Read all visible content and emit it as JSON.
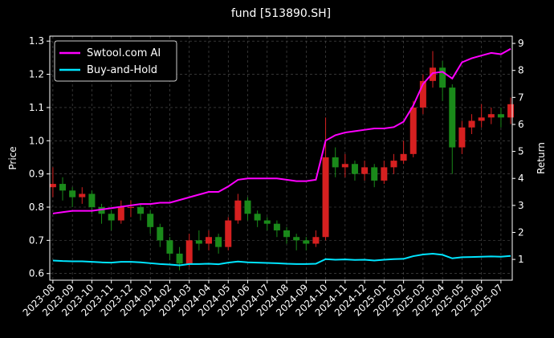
{
  "chart_data": {
    "type": "candlestick",
    "title": "fund [513890.SH]",
    "ylabel": "Price",
    "y2label": "Return",
    "x": [
      0,
      0.5,
      1,
      1.5,
      2,
      2.5,
      3,
      3.5,
      4,
      4.5,
      5,
      5.5,
      6,
      6.5,
      7,
      7.5,
      8,
      8.5,
      9,
      9.5,
      10,
      10.5,
      11,
      11.5,
      12,
      12.5,
      13,
      13.5,
      14,
      14.5,
      15,
      15.5,
      16,
      16.5,
      17,
      17.5,
      18,
      18.5,
      19,
      19.5,
      20,
      20.5,
      21,
      21.5,
      22,
      22.5,
      23,
      23.5
    ],
    "open": [
      0.86,
      0.87,
      0.85,
      0.83,
      0.84,
      0.8,
      0.78,
      0.76,
      0.8,
      0.8,
      0.78,
      0.74,
      0.7,
      0.66,
      0.63,
      0.7,
      0.69,
      0.71,
      0.68,
      0.76,
      0.82,
      0.78,
      0.76,
      0.75,
      0.73,
      0.71,
      0.7,
      0.69,
      0.71,
      0.95,
      0.92,
      0.93,
      0.9,
      0.92,
      0.88,
      0.92,
      0.94,
      0.96,
      1.1,
      1.18,
      1.22,
      1.16,
      0.98,
      1.04,
      1.06,
      1.07,
      1.08,
      1.07
    ],
    "high": [
      0.92,
      0.89,
      0.86,
      0.86,
      0.85,
      0.81,
      0.79,
      0.82,
      0.82,
      0.81,
      0.79,
      0.75,
      0.71,
      0.68,
      0.72,
      0.73,
      0.73,
      0.72,
      0.77,
      0.84,
      0.83,
      0.79,
      0.77,
      0.76,
      0.74,
      0.72,
      0.71,
      0.73,
      1.07,
      0.98,
      0.96,
      0.94,
      0.94,
      0.93,
      0.94,
      0.96,
      1.0,
      1.12,
      1.2,
      1.27,
      1.24,
      1.17,
      1.06,
      1.08,
      1.11,
      1.1,
      1.1,
      1.13
    ],
    "low": [
      0.83,
      0.82,
      0.8,
      0.81,
      0.78,
      0.75,
      0.73,
      0.75,
      0.77,
      0.76,
      0.72,
      0.68,
      0.64,
      0.61,
      0.62,
      0.67,
      0.67,
      0.66,
      0.67,
      0.75,
      0.76,
      0.74,
      0.73,
      0.71,
      0.69,
      0.67,
      0.67,
      0.68,
      0.7,
      0.89,
      0.89,
      0.88,
      0.88,
      0.86,
      0.87,
      0.9,
      0.93,
      0.95,
      1.08,
      1.16,
      1.12,
      0.9,
      0.96,
      1.02,
      1.04,
      1.05,
      1.04,
      1.05
    ],
    "close": [
      0.87,
      0.85,
      0.83,
      0.84,
      0.8,
      0.78,
      0.76,
      0.8,
      0.8,
      0.78,
      0.74,
      0.7,
      0.66,
      0.63,
      0.7,
      0.69,
      0.71,
      0.68,
      0.76,
      0.82,
      0.78,
      0.76,
      0.75,
      0.73,
      0.71,
      0.7,
      0.69,
      0.71,
      0.95,
      0.92,
      0.93,
      0.9,
      0.92,
      0.88,
      0.92,
      0.94,
      0.96,
      1.1,
      1.18,
      1.22,
      1.16,
      0.98,
      1.04,
      1.06,
      1.07,
      1.08,
      1.07,
      1.11
    ],
    "up_color": "#d62020",
    "down_color": "#1a8a1a",
    "series": [
      {
        "name": "Swtool.com AI",
        "color": "#ff00ff",
        "axis": "y2",
        "values": [
          2.7,
          2.75,
          2.8,
          2.8,
          2.8,
          2.85,
          2.9,
          2.95,
          3.0,
          3.05,
          3.05,
          3.1,
          3.1,
          3.2,
          3.3,
          3.4,
          3.5,
          3.5,
          3.7,
          3.95,
          4.0,
          4.0,
          4.0,
          4.0,
          3.95,
          3.9,
          3.9,
          3.95,
          5.4,
          5.6,
          5.7,
          5.75,
          5.8,
          5.85,
          5.85,
          5.9,
          6.1,
          6.7,
          7.5,
          7.9,
          7.95,
          7.7,
          8.3,
          8.45,
          8.55,
          8.65,
          8.6,
          8.8
        ]
      },
      {
        "name": "Buy-and-Hold",
        "color": "#00e5ff",
        "axis": "y2",
        "values": [
          0.96,
          0.94,
          0.93,
          0.93,
          0.91,
          0.89,
          0.88,
          0.91,
          0.91,
          0.89,
          0.86,
          0.83,
          0.81,
          0.78,
          0.83,
          0.83,
          0.84,
          0.82,
          0.88,
          0.92,
          0.89,
          0.88,
          0.87,
          0.86,
          0.84,
          0.83,
          0.83,
          0.84,
          1.01,
          0.99,
          1.0,
          0.98,
          0.99,
          0.96,
          0.99,
          1.01,
          1.02,
          1.12,
          1.18,
          1.21,
          1.17,
          1.04,
          1.08,
          1.09,
          1.1,
          1.11,
          1.1,
          1.13
        ]
      }
    ],
    "xlim": [
      -0.16,
      23.58
    ],
    "xticks": [
      {
        "value": 0,
        "label": "2023-08"
      },
      {
        "value": 1,
        "label": "2023-09"
      },
      {
        "value": 2,
        "label": "2023-10"
      },
      {
        "value": 3,
        "label": "2023-11"
      },
      {
        "value": 4,
        "label": "2023-12"
      },
      {
        "value": 5,
        "label": "2024-01"
      },
      {
        "value": 6,
        "label": "2024-02"
      },
      {
        "value": 7,
        "label": "2024-03"
      },
      {
        "value": 8,
        "label": "2024-04"
      },
      {
        "value": 9,
        "label": "2024-05"
      },
      {
        "value": 10,
        "label": "2024-06"
      },
      {
        "value": 11,
        "label": "2024-07"
      },
      {
        "value": 12,
        "label": "2024-08"
      },
      {
        "value": 13,
        "label": "2024-09"
      },
      {
        "value": 14,
        "label": "2024-10"
      },
      {
        "value": 15,
        "label": "2024-11"
      },
      {
        "value": 16,
        "label": "2024-12"
      },
      {
        "value": 17,
        "label": "2025-01"
      },
      {
        "value": 18,
        "label": "2025-02"
      },
      {
        "value": 19,
        "label": "2025-03"
      },
      {
        "value": 20,
        "label": "2025-04"
      },
      {
        "value": 21,
        "label": "2025-05"
      },
      {
        "value": 22,
        "label": "2025-06"
      },
      {
        "value": 23,
        "label": "2025-07"
      }
    ],
    "ylim": [
      0.58,
      1.315
    ],
    "yticks": [
      0.6,
      0.7,
      0.8,
      0.9,
      {
        "value": 1,
        "label": "1.0"
      },
      1.1,
      1.2,
      1.3
    ],
    "y2lim": [
      0.23,
      9.27
    ],
    "y2ticks": [
      1,
      2,
      3,
      4,
      5,
      6,
      7,
      8,
      9
    ],
    "grid": true,
    "legend": "upper left"
  }
}
